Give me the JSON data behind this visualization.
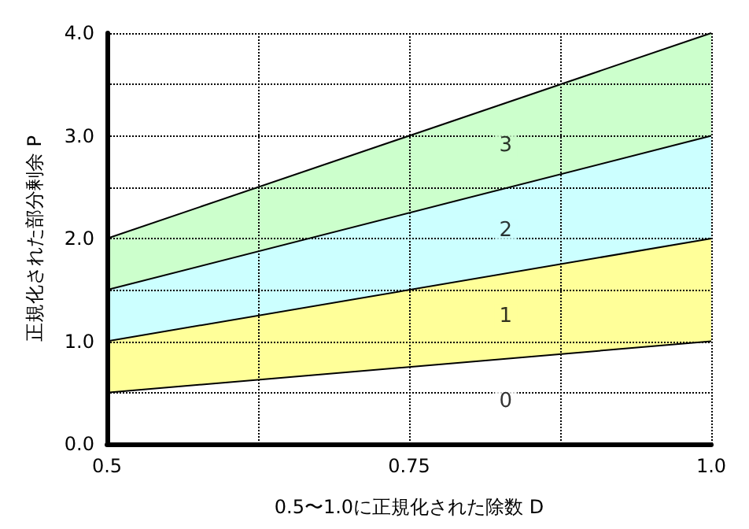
{
  "chart_data": {
    "type": "area",
    "stacked": true,
    "xlabel": "0.5〜1.0に正規化された除数 D",
    "ylabel": "正規化された部分剰余 P",
    "x": [
      0.5,
      1.0
    ],
    "series": [
      {
        "color": "#ffffff",
        "values": [
          0.5,
          1.0
        ]
      },
      {
        "color": "#ffff99",
        "values": [
          0.5,
          1.0
        ]
      },
      {
        "color": "#ccffff",
        "values": [
          0.5,
          1.0
        ]
      },
      {
        "color": "#ccffcc",
        "values": [
          0.5,
          1.0
        ]
      }
    ],
    "xlim": [
      0.5,
      1.0
    ],
    "xticks": [
      0.5,
      {
        "value": 0.625,
        "label": null
      },
      0.75,
      {
        "value": 0.875,
        "label": null
      },
      {
        "value": 1.0,
        "label": "1.0"
      }
    ],
    "ylim": [
      0,
      4
    ],
    "yticks": [
      {
        "value": 0,
        "label": "0.0"
      },
      {
        "value": 0.5,
        "label": null
      },
      {
        "value": 1,
        "label": "1.0"
      },
      {
        "value": 1.5,
        "label": null
      },
      {
        "value": 2,
        "label": "2.0"
      },
      {
        "value": 2.5,
        "label": null
      },
      {
        "value": 3,
        "label": "3.0"
      },
      {
        "value": 3.5,
        "label": null
      },
      {
        "value": 4,
        "label": "4.0"
      }
    ],
    "grid": true,
    "marker": "none",
    "annotations": [
      "0",
      "1",
      "2",
      "3"
    ]
  }
}
